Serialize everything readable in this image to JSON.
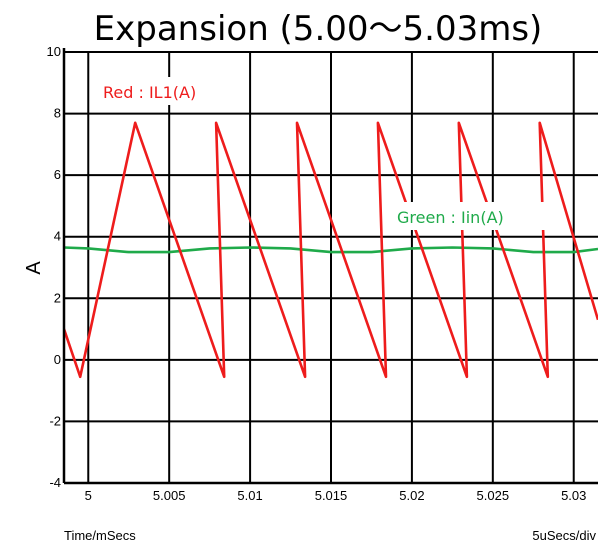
{
  "chart_data": {
    "type": "line",
    "title": "Expansion (5.00～5.03ms)",
    "xlabel": "Time/mSecs",
    "xdiv": "5uSecs/div",
    "ylabel": "A",
    "xlim": [
      4.9985,
      5.0315
    ],
    "ylim": [
      -4,
      10
    ],
    "x_ticks": [
      5,
      5.005,
      5.01,
      5.015,
      5.02,
      5.025,
      5.03
    ],
    "x_tick_labels": [
      "5",
      "5.005",
      "5.01",
      "5.015",
      "5.02",
      "5.025",
      "5.03"
    ],
    "y_ticks": [
      -4,
      -2,
      0,
      2,
      4,
      6,
      8,
      10
    ],
    "y_tick_labels": [
      "-4",
      "-2",
      "0",
      "2",
      "4",
      "6",
      "8",
      "10"
    ],
    "grid": true,
    "series": [
      {
        "name": "Red : IL1(A)",
        "color": "#ee1c1c",
        "x": [
          4.9985,
          4.9995,
          5.0029,
          5.0084,
          5.0079,
          5.0134,
          5.0129,
          5.0184,
          5.0179,
          5.0234,
          5.0229,
          5.0284,
          5.0279,
          5.0315
        ],
        "y": [
          1.0,
          -0.55,
          7.7,
          -0.55,
          7.7,
          -0.55,
          7.7,
          -0.55,
          7.7,
          -0.55,
          7.7,
          -0.55,
          7.7,
          1.3
        ]
      },
      {
        "name": "Green : Iin(A)",
        "color": "#1faa4a",
        "x": [
          4.9985,
          5.0,
          5.0025,
          5.005,
          5.0075,
          5.01,
          5.0125,
          5.015,
          5.0175,
          5.02,
          5.0225,
          5.025,
          5.0275,
          5.03,
          5.0315
        ],
        "y": [
          3.65,
          3.62,
          3.5,
          3.5,
          3.62,
          3.65,
          3.62,
          3.5,
          3.5,
          3.62,
          3.65,
          3.62,
          3.5,
          3.5,
          3.6
        ]
      }
    ]
  }
}
